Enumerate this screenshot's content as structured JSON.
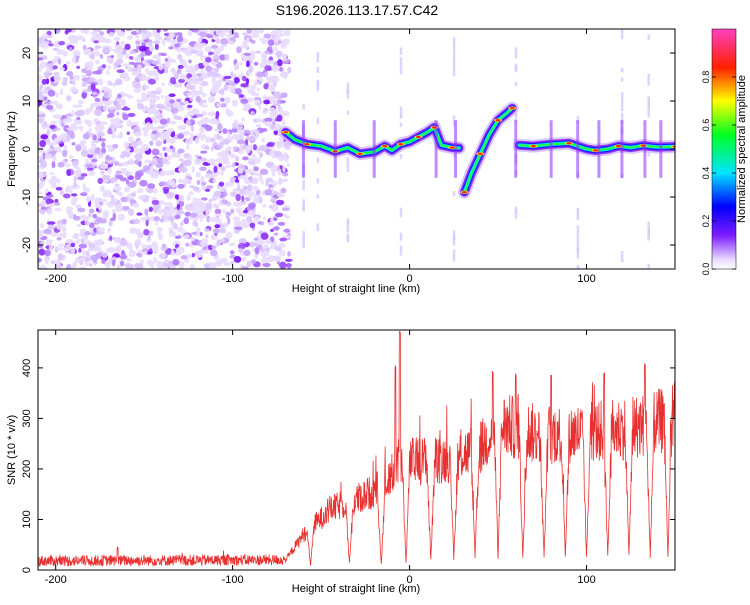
{
  "title": "S196.2026.113.17.57.C42",
  "chart_data": [
    {
      "type": "heatmap",
      "xlabel": "Height of straight line (km)",
      "ylabel": "Frequency (Hz)",
      "xlim": [
        -210,
        150
      ],
      "ylim": [
        -25,
        25
      ],
      "x_ticks": [
        -200,
        -100,
        0,
        100
      ],
      "y_ticks": [
        -20,
        -10,
        0,
        10,
        20
      ],
      "colorbar": {
        "label": "Normalized spectral amplitude",
        "range": [
          0.0,
          1.0
        ],
        "ticks": [
          0.0,
          0.2,
          0.4,
          0.6,
          0.8
        ],
        "colormap": "rainbow (magenta-blue-cyan-green-yellow-red-pink)"
      },
      "noise_region_x": [
        -210,
        -68
      ],
      "ridge": [
        {
          "x": -70,
          "y": 3.5
        },
        {
          "x": -65,
          "y": 2
        },
        {
          "x": -58,
          "y": 1
        },
        {
          "x": -50,
          "y": 0.6
        },
        {
          "x": -42,
          "y": -0.5
        },
        {
          "x": -35,
          "y": 0.3
        },
        {
          "x": -28,
          "y": -1
        },
        {
          "x": -20,
          "y": -0.6
        },
        {
          "x": -14,
          "y": 0.6
        },
        {
          "x": -10,
          "y": -0.3
        },
        {
          "x": -5,
          "y": 1
        },
        {
          "x": 0,
          "y": 1.5
        },
        {
          "x": 5,
          "y": 2.5
        },
        {
          "x": 10,
          "y": 3.5
        },
        {
          "x": 14,
          "y": 4.5
        },
        {
          "x": 18,
          "y": 0.8
        },
        {
          "x": 24,
          "y": 0.3
        },
        {
          "x": 28,
          "y": 0.2
        },
        {
          "x": 31,
          "y": -9
        },
        {
          "x": 35,
          "y": -5
        },
        {
          "x": 40,
          "y": -1
        },
        {
          "x": 45,
          "y": 3
        },
        {
          "x": 50,
          "y": 6
        },
        {
          "x": 55,
          "y": 7.5
        },
        {
          "x": 58,
          "y": 8.5
        },
        {
          "x": 62,
          "y": 0.8
        },
        {
          "x": 70,
          "y": 0.6
        },
        {
          "x": 80,
          "y": 1
        },
        {
          "x": 90,
          "y": 1.2
        },
        {
          "x": 100,
          "y": 0
        },
        {
          "x": 105,
          "y": -0.3
        },
        {
          "x": 112,
          "y": 0
        },
        {
          "x": 118,
          "y": 0.6
        },
        {
          "x": 125,
          "y": 0.3
        },
        {
          "x": 132,
          "y": 0.7
        },
        {
          "x": 140,
          "y": 0.4
        },
        {
          "x": 150,
          "y": 0.5
        }
      ],
      "ridge_gaps_x": [
        -60,
        -42,
        -20,
        15,
        26,
        60,
        80,
        95,
        107,
        120,
        133,
        142
      ]
    },
    {
      "type": "line",
      "xlabel": "Height of straight line (km)",
      "ylabel": "SNR (10 * v/v)",
      "xlim": [
        -210,
        150
      ],
      "ylim": [
        0,
        475
      ],
      "x_ticks": [
        -200,
        -100,
        0,
        100
      ],
      "y_ticks": [
        0,
        100,
        200,
        300,
        400
      ],
      "color": "#e83030",
      "envelope": [
        {
          "x": -210,
          "y": 18
        },
        {
          "x": -70,
          "y": 20
        },
        {
          "x": -60,
          "y": 70
        },
        {
          "x": -45,
          "y": 120
        },
        {
          "x": -30,
          "y": 140
        },
        {
          "x": -15,
          "y": 165
        },
        {
          "x": -8,
          "y": 200
        },
        {
          "x": 0,
          "y": 215
        },
        {
          "x": 20,
          "y": 220
        },
        {
          "x": 40,
          "y": 240
        },
        {
          "x": 50,
          "y": 290
        },
        {
          "x": 70,
          "y": 270
        },
        {
          "x": 90,
          "y": 270
        },
        {
          "x": 110,
          "y": 275
        },
        {
          "x": 130,
          "y": 285
        },
        {
          "x": 150,
          "y": 300
        }
      ],
      "peaks": [
        {
          "x": -5.5,
          "y": 475
        },
        {
          "x": -8,
          "y": 405
        },
        {
          "x": 47,
          "y": 395
        },
        {
          "x": 60,
          "y": 390
        },
        {
          "x": 80,
          "y": 390
        },
        {
          "x": 110,
          "y": 395
        },
        {
          "x": 133,
          "y": 410
        },
        {
          "x": 150,
          "y": 380
        },
        {
          "x": -165,
          "y": 48
        }
      ],
      "dips": [
        {
          "x": -56,
          "y": 8
        },
        {
          "x": -34,
          "y": 10
        },
        {
          "x": -16,
          "y": 5
        },
        {
          "x": -2,
          "y": 8
        },
        {
          "x": 12,
          "y": 15
        },
        {
          "x": 25,
          "y": 20
        },
        {
          "x": 37,
          "y": 20
        },
        {
          "x": 50,
          "y": 20
        },
        {
          "x": 64,
          "y": 18
        },
        {
          "x": 76,
          "y": 18
        },
        {
          "x": 88,
          "y": 20
        },
        {
          "x": 100,
          "y": 22
        },
        {
          "x": 112,
          "y": 22
        },
        {
          "x": 124,
          "y": 24
        },
        {
          "x": 136,
          "y": 24
        },
        {
          "x": 146,
          "y": 24
        }
      ]
    }
  ]
}
